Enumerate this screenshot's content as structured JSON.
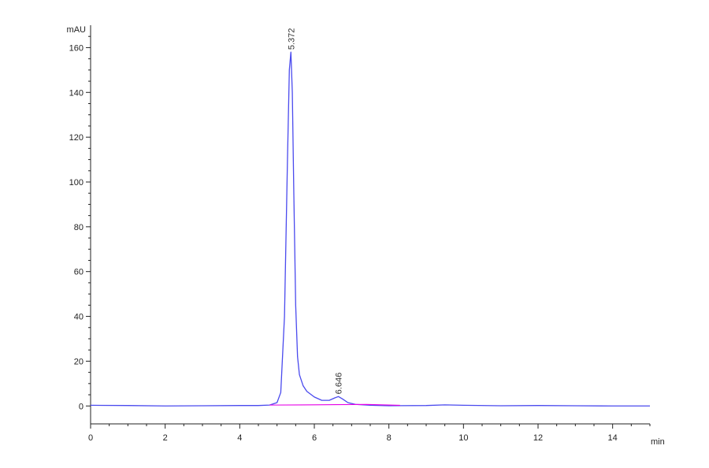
{
  "chart_data": {
    "type": "line",
    "title": "",
    "xlabel": "min",
    "ylabel": "mAU",
    "xlim": [
      0,
      15
    ],
    "ylim": [
      -8,
      170
    ],
    "x_ticks": [
      0,
      2,
      4,
      6,
      8,
      10,
      12,
      14
    ],
    "y_ticks": [
      0,
      20,
      40,
      60,
      80,
      100,
      120,
      140,
      160
    ],
    "grid": false,
    "series": [
      {
        "color": "#4a4aee",
        "x": [
          0,
          1,
          2,
          3,
          4,
          4.5,
          4.8,
          5.0,
          5.1,
          5.2,
          5.28,
          5.33,
          5.372,
          5.41,
          5.45,
          5.5,
          5.55,
          5.6,
          5.7,
          5.8,
          6.0,
          6.2,
          6.4,
          6.55,
          6.646,
          6.75,
          6.9,
          7.1,
          7.5,
          8,
          9,
          9.5,
          10,
          11,
          12,
          13,
          14,
          15
        ],
        "y": [
          0.3,
          0.2,
          0.0,
          0.1,
          0.2,
          0.2,
          0.4,
          1.5,
          6,
          40,
          110,
          150,
          158,
          140,
          95,
          45,
          22,
          14,
          9,
          6.5,
          4,
          2.5,
          2.5,
          3.6,
          4.2,
          3.2,
          1.5,
          0.7,
          0.3,
          0.1,
          0.2,
          0.5,
          0.3,
          0.1,
          0.2,
          0.1,
          0.0,
          0.0
        ]
      },
      {
        "color": "#e600e6",
        "x": [
          4.8,
          6.0,
          6.6,
          7.4,
          8.3
        ],
        "y": [
          0.4,
          0.5,
          0.6,
          0.7,
          0.3
        ]
      }
    ],
    "peaks": [
      {
        "x": 5.372,
        "y": 158,
        "label": "5.372"
      },
      {
        "x": 6.646,
        "y": 4.2,
        "label": "6.646"
      }
    ]
  }
}
